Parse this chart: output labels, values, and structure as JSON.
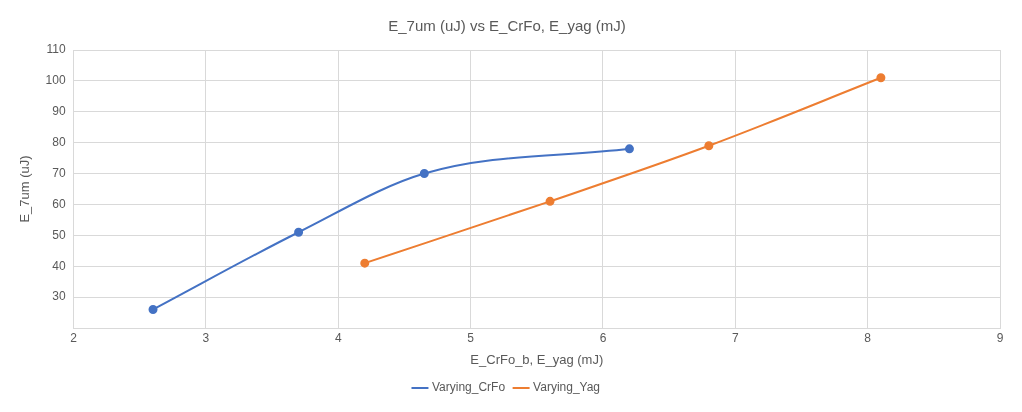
{
  "chart_data": {
    "type": "line",
    "title": "E_7um (uJ) vs E_CrFo, E_yag (mJ)",
    "xlabel": "E_CrFo_b, E_yag (mJ)",
    "ylabel": "E_7um (uJ)",
    "xlim": [
      2,
      9
    ],
    "xticks": [
      2,
      3,
      4,
      5,
      6,
      7,
      8,
      9
    ],
    "ylim": [
      20,
      110
    ],
    "yticks": [
      30,
      40,
      50,
      60,
      70,
      80,
      90,
      100,
      110
    ],
    "grid": true,
    "legend": "bottom",
    "marker": "circle",
    "line_style": "solid",
    "series": [
      {
        "name": "Varying_CrFo",
        "color": "#4472c4",
        "x": [
          2.6,
          3.7,
          4.65,
          6.2
        ],
        "values": [
          26,
          51,
          70,
          78
        ]
      },
      {
        "name": "Varying_Yag",
        "color": "#ed7d31",
        "x": [
          4.2,
          5.6,
          6.8,
          8.1
        ],
        "values": [
          41,
          61,
          79,
          101
        ]
      }
    ]
  }
}
